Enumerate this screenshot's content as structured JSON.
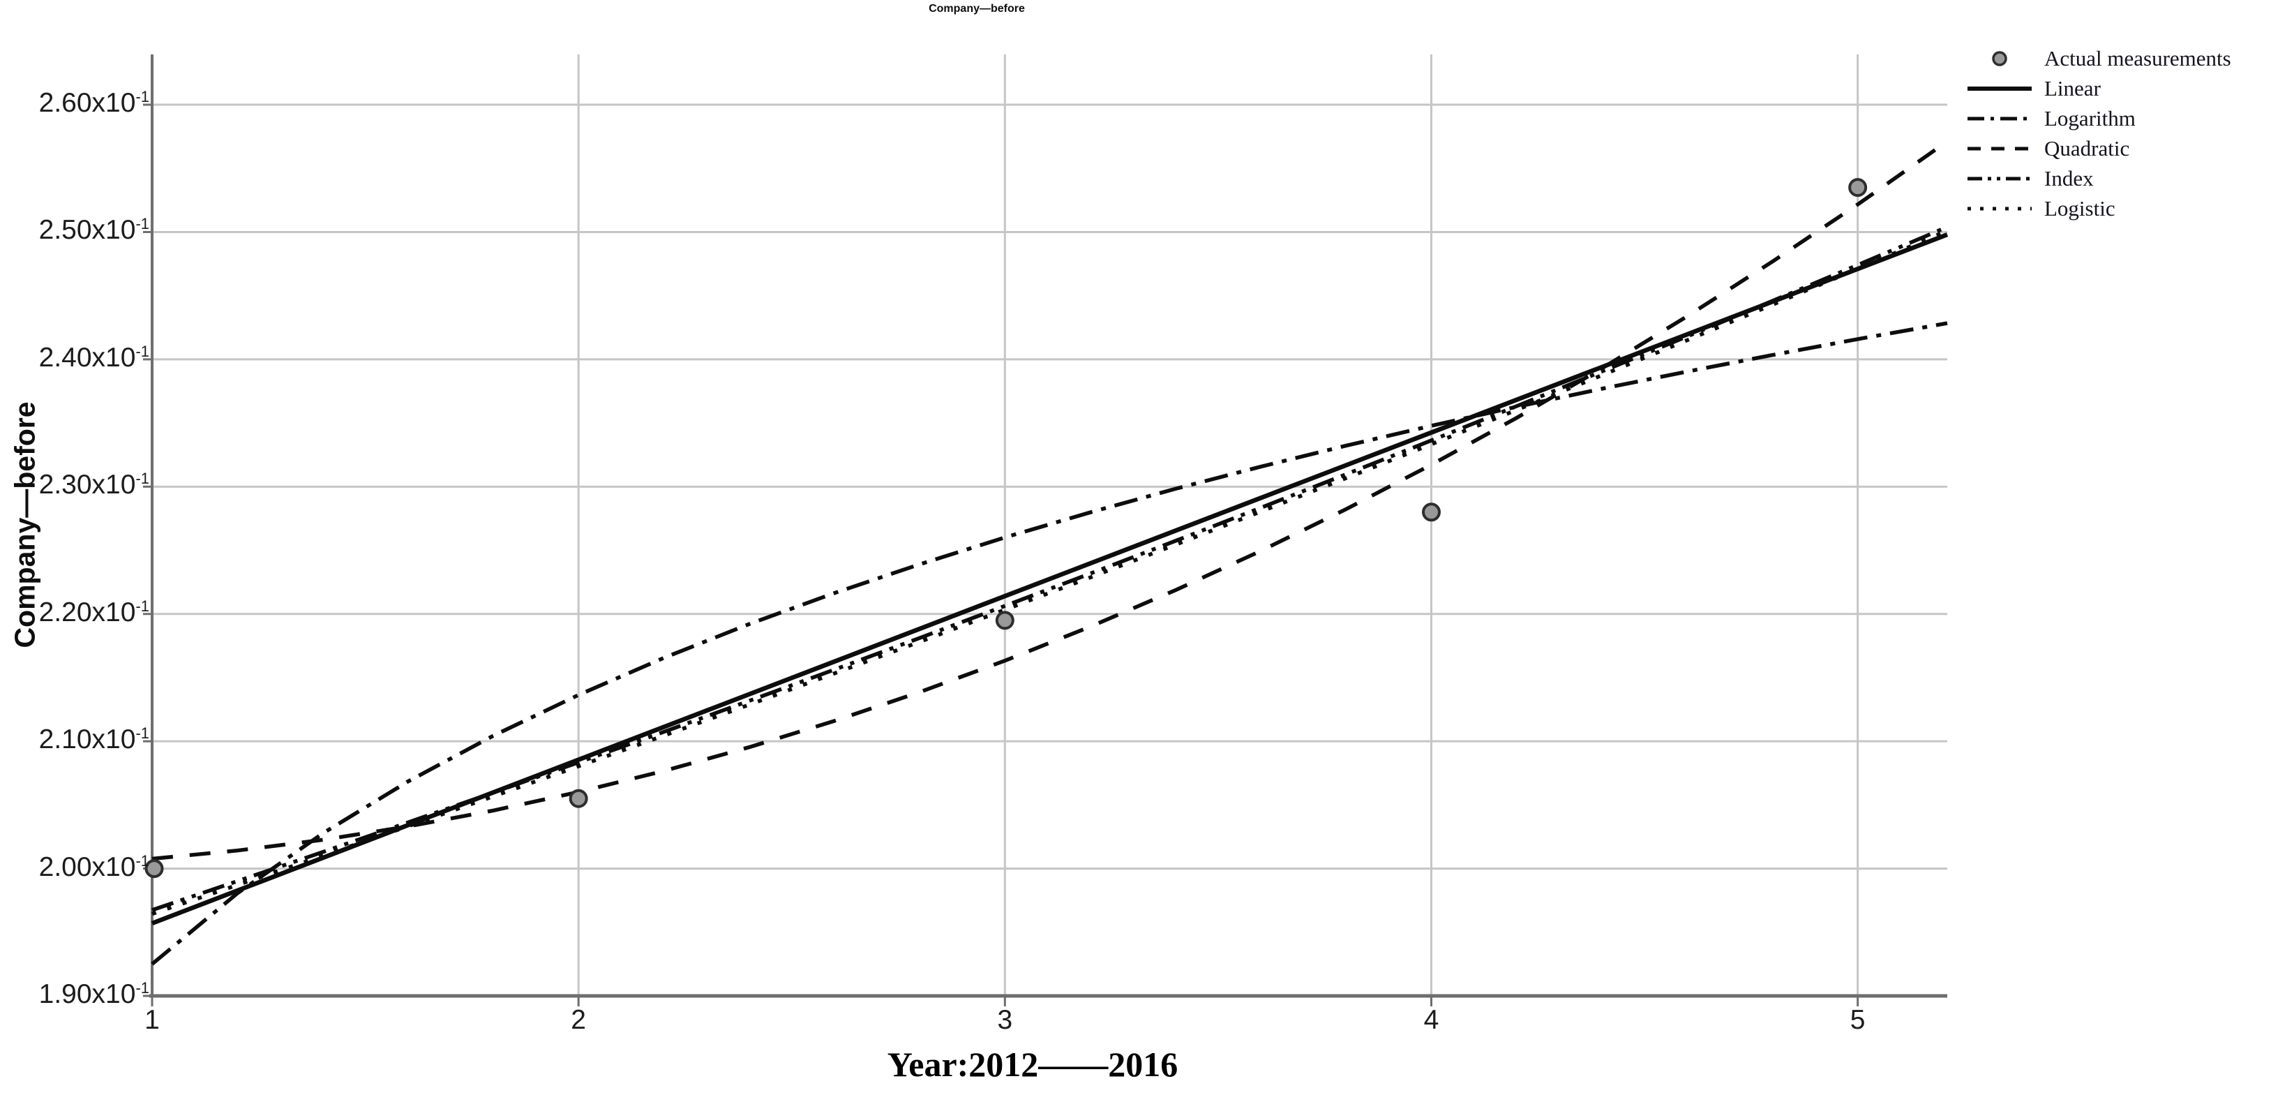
{
  "title": "Company—before",
  "legend": {
    "position": "top-right",
    "items": [
      {
        "label": "Actual measurements",
        "swatch": "circle-marker"
      },
      {
        "label": "Linear",
        "swatch": "line",
        "dash": "solid"
      },
      {
        "label": "Logarithm",
        "swatch": "line",
        "dash": "dash-dot"
      },
      {
        "label": "Quadratic",
        "swatch": "line",
        "dash": "dash"
      },
      {
        "label": "Index",
        "swatch": "line",
        "dash": "dash-dot-dot"
      },
      {
        "label": "Logistic",
        "swatch": "line",
        "dash": "dot"
      }
    ]
  },
  "colors": {
    "curve": "#0d0d0d",
    "marker_fill": "#999999",
    "marker_stroke": "#2e2e2e",
    "gridline": "#c6c6c6",
    "axis": "#6e6e6e",
    "text": "#1c1c1c"
  },
  "chart_data": {
    "type": "line",
    "title": "Company—before",
    "xlabel": "Year:2012——2016",
    "ylabel": "Company—before",
    "grid": true,
    "legend_position": "top-right",
    "xlim": [
      1,
      5.21
    ],
    "ylim": [
      0.19,
      0.26395
    ],
    "x_ticks": [
      {
        "v": 1,
        "label": "1"
      },
      {
        "v": 2,
        "label": "2"
      },
      {
        "v": 3,
        "label": "3"
      },
      {
        "v": 4,
        "label": "4"
      },
      {
        "v": 5,
        "label": "5"
      }
    ],
    "y_ticks": [
      {
        "v": 0.19,
        "mantissa": "1.90",
        "base": "x10",
        "exp": "-1"
      },
      {
        "v": 0.2,
        "mantissa": "2.00",
        "base": "x10",
        "exp": "-1"
      },
      {
        "v": 0.21,
        "mantissa": "2.10",
        "base": "x10",
        "exp": "-1"
      },
      {
        "v": 0.22,
        "mantissa": "2.20",
        "base": "x10",
        "exp": "-1"
      },
      {
        "v": 0.23,
        "mantissa": "2.30",
        "base": "x10",
        "exp": "-1"
      },
      {
        "v": 0.24,
        "mantissa": "2.40",
        "base": "x10",
        "exp": "-1"
      },
      {
        "v": 0.25,
        "mantissa": "2.50",
        "base": "x10",
        "exp": "-1"
      },
      {
        "v": 0.26,
        "mantissa": "2.60",
        "base": "x10",
        "exp": "-1"
      }
    ],
    "series": [
      {
        "name": "Logarithm",
        "kind": "line",
        "dash": "dash-dot",
        "x": [
          1,
          1.2,
          1.4,
          1.6,
          1.8,
          2,
          2.2,
          2.4,
          2.6,
          2.8,
          3,
          3.2,
          3.4,
          3.6,
          3.8,
          4,
          4.2,
          4.4,
          4.6,
          4.8,
          5,
          5.21
        ],
        "y": [
          0.1925,
          0.19806,
          0.20276,
          0.20684,
          0.21043,
          0.21364,
          0.21655,
          0.2192,
          0.22164,
          0.2239,
          0.22601,
          0.22798,
          0.22983,
          0.23157,
          0.23322,
          0.23478,
          0.23627,
          0.23769,
          0.23904,
          0.24034,
          0.24159,
          0.24284
        ]
      },
      {
        "name": "Quadratic",
        "kind": "line",
        "dash": "dash",
        "x": [
          1,
          1.2,
          1.4,
          1.6,
          1.8,
          2,
          2.2,
          2.4,
          2.6,
          2.8,
          3,
          3.2,
          3.4,
          3.6,
          3.8,
          4,
          4.2,
          4.4,
          4.6,
          4.8,
          5,
          5.21
        ],
        "y": [
          0.20077,
          0.20142,
          0.20226,
          0.20331,
          0.20456,
          0.20602,
          0.20767,
          0.20953,
          0.2116,
          0.21386,
          0.21633,
          0.219,
          0.22187,
          0.22495,
          0.22823,
          0.23172,
          0.2354,
          0.23929,
          0.24338,
          0.24768,
          0.25217,
          0.25712
        ]
      },
      {
        "name": "Index",
        "kind": "line",
        "dash": "dash-dot-dot",
        "x": [
          1,
          1.2,
          1.4,
          1.6,
          1.8,
          2,
          2.2,
          2.4,
          2.6,
          2.8,
          3,
          3.2,
          3.4,
          3.6,
          3.8,
          4,
          4.2,
          4.4,
          4.6,
          4.8,
          5,
          5.21
        ],
        "y": [
          0.19674,
          0.19901,
          0.2013,
          0.20362,
          0.20597,
          0.20834,
          0.21074,
          0.21317,
          0.21563,
          0.21811,
          0.22063,
          0.22317,
          0.22574,
          0.22834,
          0.23097,
          0.23363,
          0.23632,
          0.23905,
          0.2418,
          0.24459,
          0.24741,
          0.2504
        ]
      },
      {
        "name": "Logistic",
        "kind": "line",
        "dash": "dot",
        "x": [
          1,
          1.2,
          1.4,
          1.6,
          1.8,
          2,
          2.2,
          2.4,
          2.6,
          2.8,
          3,
          3.2,
          3.4,
          3.6,
          3.8,
          4,
          4.2,
          4.4,
          4.6,
          4.8,
          5,
          5.21
        ],
        "y": [
          0.19644,
          0.19871,
          0.201,
          0.20332,
          0.20567,
          0.20804,
          0.21044,
          0.21287,
          0.21533,
          0.21781,
          0.22033,
          0.22287,
          0.22544,
          0.22804,
          0.23067,
          0.23333,
          0.23602,
          0.23875,
          0.2415,
          0.24429,
          0.24711,
          0.2501
        ]
      },
      {
        "name": "Linear",
        "kind": "line",
        "dash": "solid",
        "x": [
          1,
          5.21
        ],
        "y": [
          0.1957,
          0.2498
        ]
      },
      {
        "name": "Actual measurements",
        "kind": "scatter",
        "x": [
          1,
          2,
          3,
          4,
          5
        ],
        "y": [
          0.2,
          0.2055,
          0.2195,
          0.228,
          0.2535
        ]
      }
    ]
  }
}
